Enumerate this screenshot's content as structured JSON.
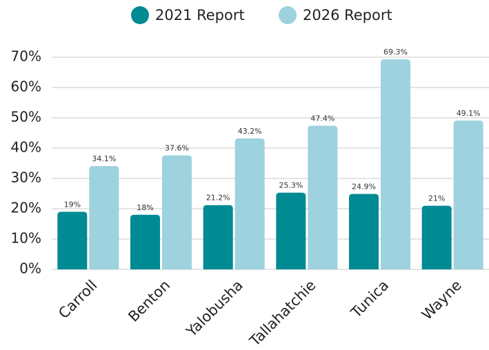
{
  "chart_data": {
    "type": "bar",
    "categories": [
      "Carroll",
      "Benton",
      "Yalobusha",
      "Tallahatchie",
      "Tunica",
      "Wayne"
    ],
    "series": [
      {
        "name": "2021 Report",
        "color": "#008a94",
        "values": [
          19,
          18,
          21.2,
          25.3,
          24.9,
          21
        ],
        "value_labels": [
          "19%",
          "18%",
          "21.2%",
          "25.3%",
          "24.9%",
          "21%"
        ]
      },
      {
        "name": "2026 Report",
        "color": "#9dd2de",
        "values": [
          34.1,
          37.6,
          43.2,
          47.4,
          69.3,
          49.1
        ],
        "value_labels": [
          "34.1%",
          "37.6%",
          "43.2%",
          "47.4%",
          "69.3%",
          "49.1%"
        ]
      }
    ],
    "ylim": [
      0,
      70
    ],
    "yticks": [
      {
        "value": 0,
        "label": "0%"
      },
      {
        "value": 10,
        "label": "10%"
      },
      {
        "value": 20,
        "label": "20%"
      },
      {
        "value": 30,
        "label": "30%"
      },
      {
        "value": 40,
        "label": "40%"
      },
      {
        "value": 50,
        "label": "50%"
      },
      {
        "value": 60,
        "label": "60%"
      },
      {
        "value": 70,
        "label": "70%"
      }
    ],
    "grid": true,
    "legend": "top"
  }
}
